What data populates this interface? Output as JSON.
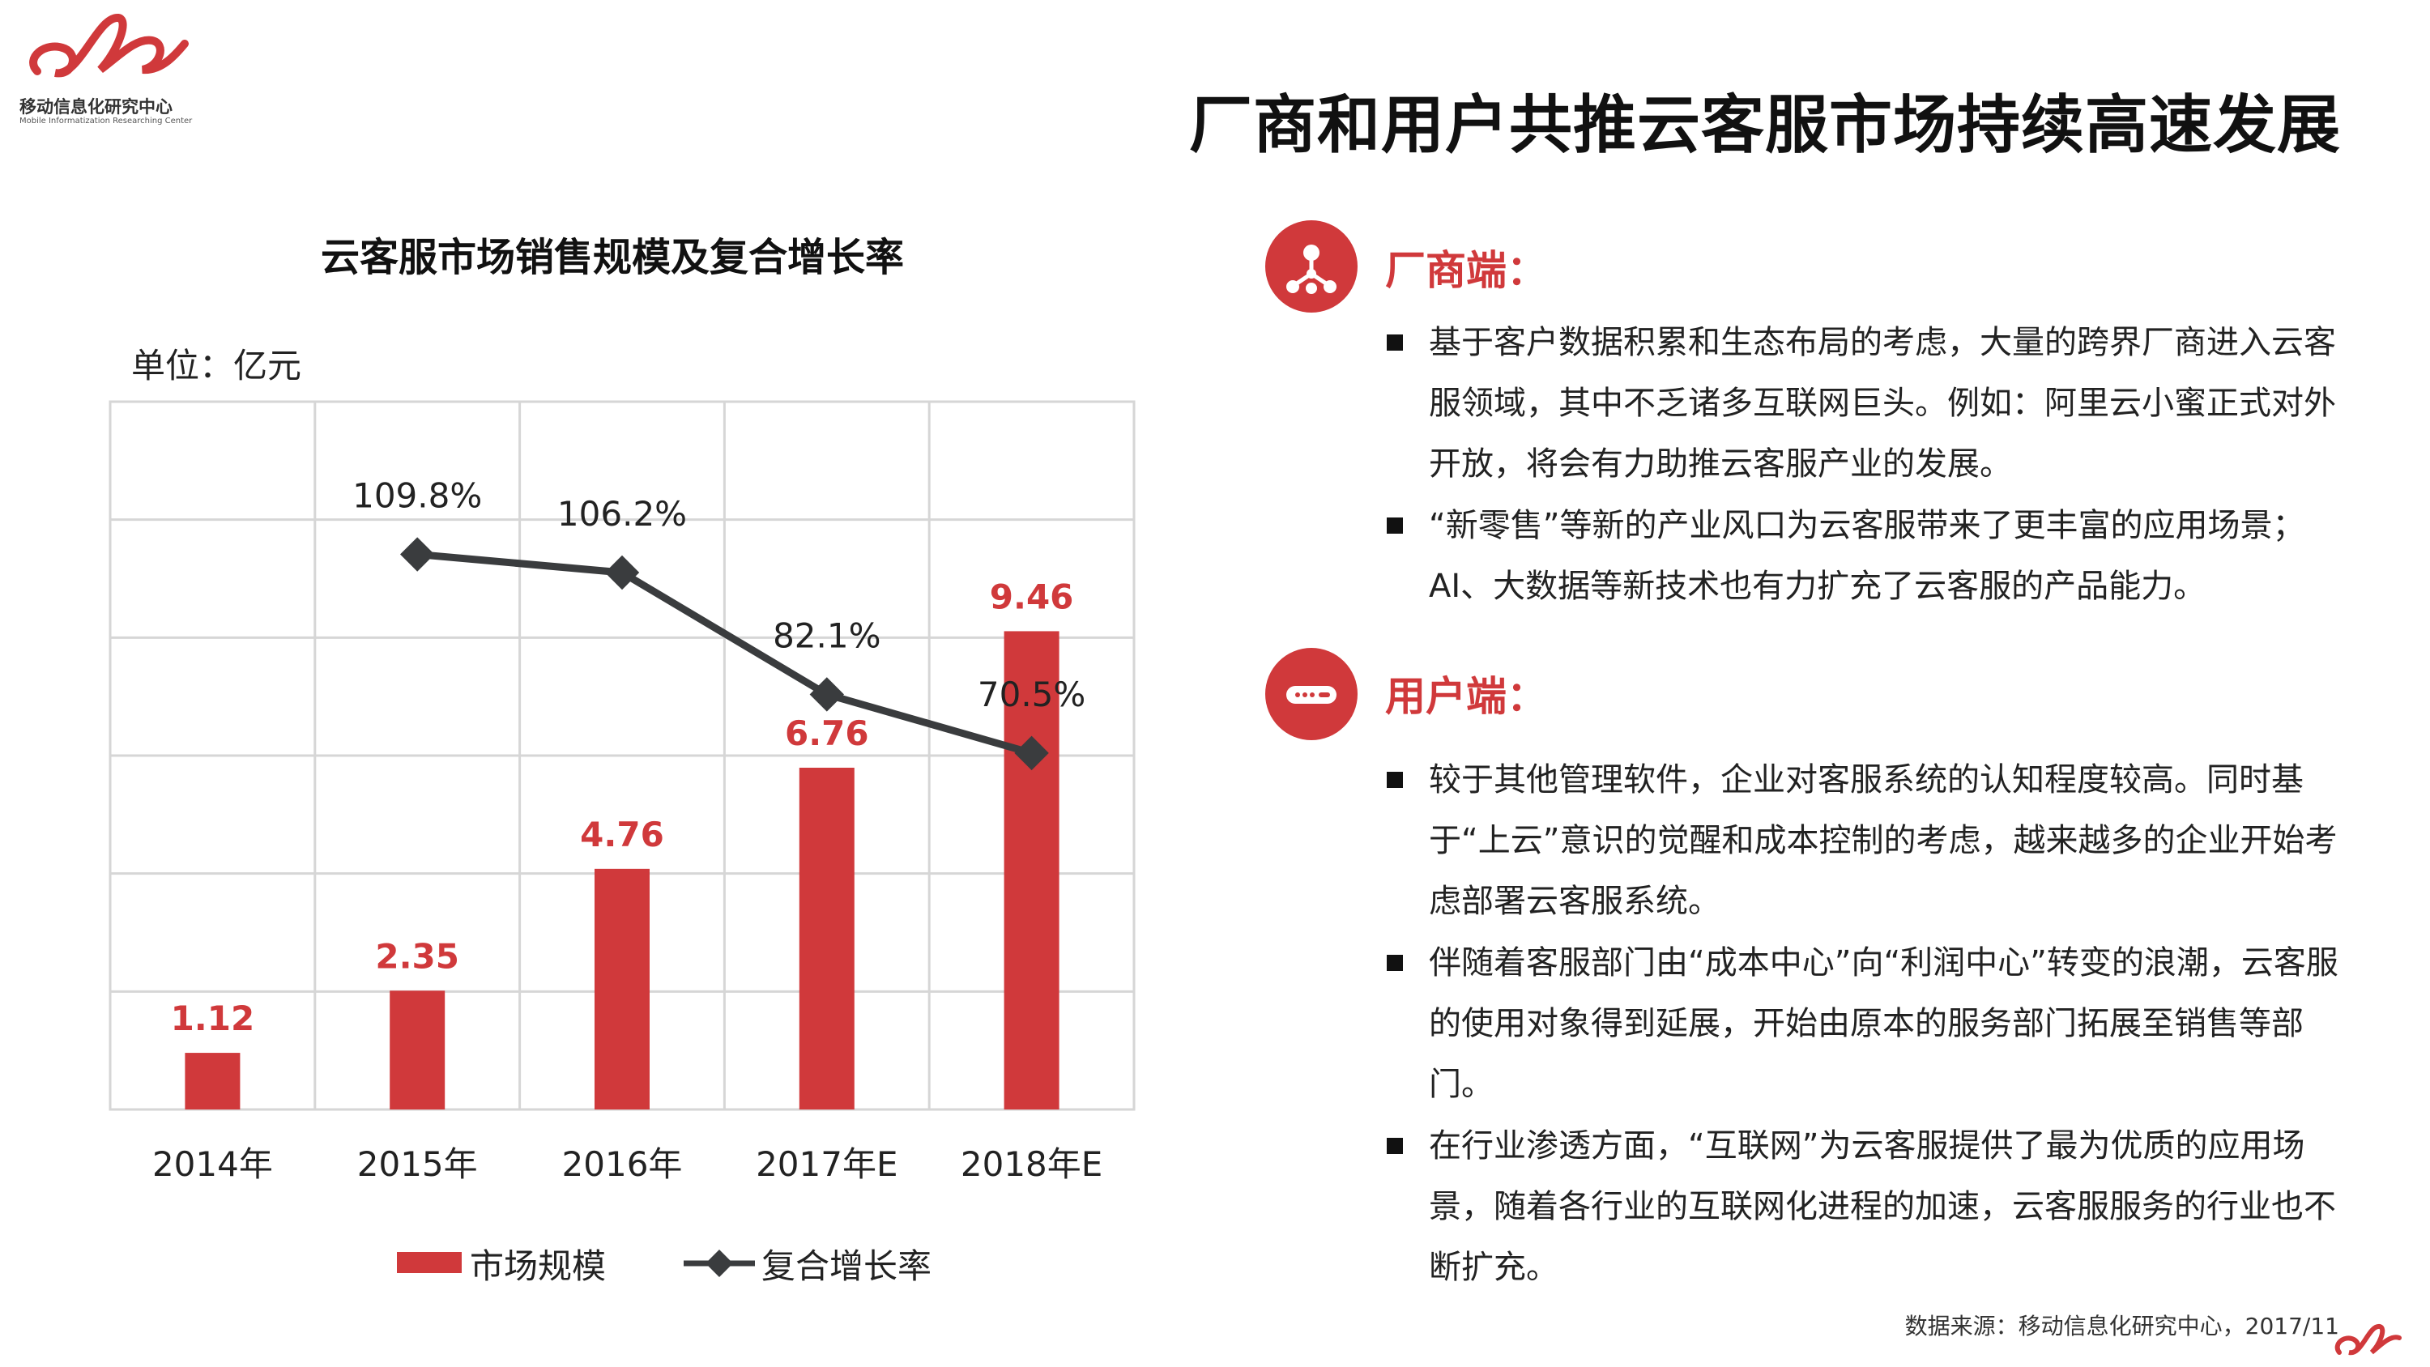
{
  "logo": {
    "name_cn": "移动信息化研究中心",
    "name_en": "Mobile Informatization Researching Center"
  },
  "page_title": "厂商和用户共推云客服市场持续高速发展",
  "colors": {
    "accent": "#d0393b",
    "line": "#3a3c3e",
    "grid": "#d6d6d6"
  },
  "chart_data": {
    "type": "bar+line",
    "title": "云客服市场销售规模及复合增长率",
    "unit_label": "单位：亿元",
    "categories": [
      "2014年",
      "2015年",
      "2016年",
      "2017年E",
      "2018年E"
    ],
    "series": [
      {
        "name": "市场规模",
        "type": "bar",
        "values": [
          1.12,
          2.35,
          4.76,
          6.76,
          9.46
        ],
        "labels": [
          "1.12",
          "2.35",
          "4.76",
          "6.76",
          "9.46"
        ]
      },
      {
        "name": "复合增长率",
        "type": "line",
        "values": [
          null,
          109.8,
          106.2,
          82.1,
          70.5
        ],
        "labels": [
          "",
          "109.8%",
          "106.2%",
          "82.1%",
          "70.5%"
        ]
      }
    ],
    "grid": true,
    "legend_position": "bottom"
  },
  "sections": [
    {
      "icon": "network-nodes-icon",
      "title": "厂商端：",
      "bullets": [
        "基于客户数据积累和生态布局的考虑，大量的跨界厂商进入云客服领域，其中不乏诸多互联网巨头。例如：阿里云小蜜正式对外开放，将会有力助推云客服产业的发展。",
        "“新零售”等新的产业风口为云客服带来了更丰富的应用场景； AI、大数据等新技术也有力扩充了云客服的产品能力。"
      ]
    },
    {
      "icon": "user-card-icon",
      "title": "用户端：",
      "bullets": [
        "较于其他管理软件，企业对客服系统的认知程度较高。同时基于“上云”意识的觉醒和成本控制的考虑，越来越多的企业开始考虑部署云客服系统。",
        "伴随着客服部门由“成本中心”向“利润中心”转变的浪潮，云客服的使用对象得到延展，开始由原本的服务部门拓展至销售等部门。",
        "在行业渗透方面，“互联网”为云客服提供了最为优质的应用场景，随着各行业的互联网化进程的加速，云客服服务的行业也不断扩充。"
      ]
    }
  ],
  "source": "数据来源：移动信息化研究中心，2017/11"
}
